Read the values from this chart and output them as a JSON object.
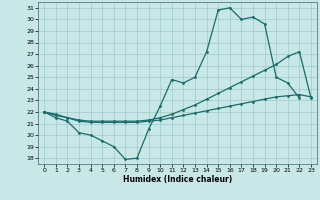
{
  "xlabel": "Humidex (Indice chaleur)",
  "bg_color": "#c8e8e8",
  "grid_color": "#a0c8c8",
  "line_color": "#1a6b6b",
  "xlim": [
    -0.5,
    23.5
  ],
  "ylim": [
    17.5,
    31.5
  ],
  "yticks": [
    18,
    19,
    20,
    21,
    22,
    23,
    24,
    25,
    26,
    27,
    28,
    29,
    30,
    31
  ],
  "xticks": [
    0,
    1,
    2,
    3,
    4,
    5,
    6,
    7,
    8,
    9,
    10,
    11,
    12,
    13,
    14,
    15,
    16,
    17,
    18,
    19,
    20,
    21,
    22,
    23
  ],
  "line1_x": [
    0,
    1,
    2,
    3,
    4,
    5,
    6,
    7,
    8,
    9,
    10,
    11,
    12,
    13,
    14,
    15,
    16,
    17,
    18,
    19,
    20,
    21,
    22,
    23
  ],
  "line1_y": [
    22.0,
    21.5,
    21.2,
    20.2,
    20.0,
    19.5,
    19.0,
    17.9,
    18.0,
    20.5,
    22.5,
    24.8,
    24.5,
    25.0,
    27.2,
    30.8,
    31.0,
    30.0,
    30.2,
    29.6,
    25.0,
    24.5,
    23.2,
    null
  ],
  "line2_x": [
    0,
    1,
    2,
    3,
    4,
    5,
    6,
    7,
    8,
    9,
    10,
    11,
    12,
    13,
    14,
    15,
    16,
    17,
    18,
    19,
    20,
    21,
    22,
    23
  ],
  "line2_y": [
    22.0,
    21.7,
    21.5,
    21.3,
    21.2,
    21.2,
    21.2,
    21.2,
    21.2,
    21.3,
    21.5,
    21.8,
    22.2,
    22.6,
    23.1,
    23.6,
    24.1,
    24.6,
    25.1,
    25.6,
    26.1,
    26.8,
    27.2,
    23.2
  ],
  "line3_x": [
    0,
    1,
    2,
    3,
    4,
    5,
    6,
    7,
    8,
    9,
    10,
    11,
    12,
    13,
    14,
    15,
    16,
    17,
    18,
    19,
    20,
    21,
    22,
    23
  ],
  "line3_y": [
    22.0,
    21.8,
    21.5,
    21.2,
    21.1,
    21.1,
    21.1,
    21.1,
    21.1,
    21.2,
    21.3,
    21.5,
    21.7,
    21.9,
    22.1,
    22.3,
    22.5,
    22.7,
    22.9,
    23.1,
    23.3,
    23.4,
    23.5,
    23.3
  ]
}
